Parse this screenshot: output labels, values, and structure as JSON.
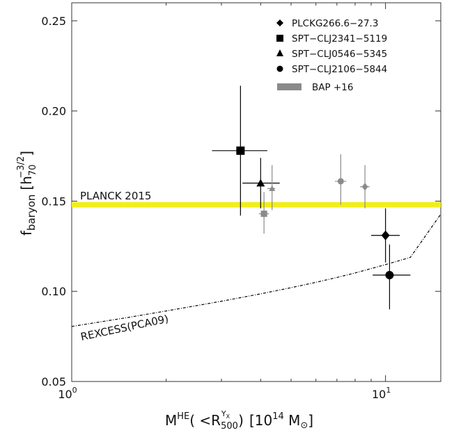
{
  "chart_data": {
    "type": "scatter",
    "x_scale": "log",
    "xlim": [
      1,
      15
    ],
    "ylim": [
      0.05,
      0.26
    ],
    "xlabel": {
      "main": "M",
      "sup": "HE",
      "paren_open": "( <R",
      "r_sup": "Y",
      "r_sup_sub": "X",
      "r_sub": "500",
      "paren_close": ")",
      "units_open": "[10",
      "units_sup": "14",
      "units_m": " M",
      "units_close": "]"
    },
    "ylabel": {
      "main": "f",
      "sub": "baryon",
      "bracket_open": "[h",
      "h_sub": "70",
      "h_sup": "−3/2",
      "bracket_close": "]"
    },
    "x_ticks": [
      {
        "value": 1,
        "base": "10",
        "exp": "0"
      },
      {
        "value": 10,
        "base": "10",
        "exp": "1"
      }
    ],
    "y_ticks": [
      {
        "value": 0.05,
        "label": "0.05"
      },
      {
        "value": 0.1,
        "label": "0.10"
      },
      {
        "value": 0.15,
        "label": "0.15"
      },
      {
        "value": 0.2,
        "label": "0.20"
      },
      {
        "value": 0.25,
        "label": "0.25"
      }
    ],
    "legend": {
      "placement": "top-right",
      "entries": [
        {
          "label": "PLCKG266.6−27.3",
          "marker": "diamond",
          "color": "#000000"
        },
        {
          "label": "SPT−CLJ2341−5119",
          "marker": "square",
          "color": "#000000"
        },
        {
          "label": "SPT−CLJ0546−5345",
          "marker": "triangle",
          "color": "#000000"
        },
        {
          "label": "SPT−CLJ2106−5844",
          "marker": "circle",
          "color": "#000000"
        },
        {
          "label": "BAP +16",
          "marker": "band",
          "color": "#8a8a8a"
        }
      ]
    },
    "planck": {
      "label": "PLANCK 2015",
      "y": 0.148,
      "y_band": [
        0.1465,
        0.1495
      ],
      "color": "#f2ee1a"
    },
    "rexcess": {
      "label": "REXCESS(PCA09)",
      "x": [
        1.0,
        1.5,
        2.0,
        3.0,
        4.0,
        5.0,
        6.0,
        7.0,
        8.0,
        9.0,
        10.0,
        12.0,
        15.0
      ],
      "y": [
        0.0805,
        0.0854,
        0.0891,
        0.0945,
        0.0986,
        0.102,
        0.105,
        0.1077,
        0.1102,
        0.1126,
        0.1148,
        0.1188,
        0.1428
      ]
    },
    "series": [
      {
        "name": "PLCKG266.6−27.3",
        "marker": "diamond",
        "color": "#000000",
        "points": [
          {
            "x": 10.0,
            "y": 0.131,
            "xerr": [
              9.0,
              11.1
            ],
            "yerr": [
              0.116,
              0.146
            ]
          }
        ]
      },
      {
        "name": "SPT−CLJ2341−5119",
        "marker": "square",
        "color": "#000000",
        "points": [
          {
            "x": 3.45,
            "y": 0.178,
            "xerr": [
              2.8,
              4.2
            ],
            "yerr": [
              0.142,
              0.214
            ]
          }
        ]
      },
      {
        "name": "SPT−CLJ0546−5345",
        "marker": "triangle",
        "color": "#000000",
        "points": [
          {
            "x": 4.0,
            "y": 0.16,
            "xerr": [
              3.5,
              4.6
            ],
            "yerr": [
              0.146,
              0.174
            ]
          }
        ]
      },
      {
        "name": "SPT−CLJ2106−5844",
        "marker": "circle",
        "color": "#000000",
        "points": [
          {
            "x": 10.3,
            "y": 0.109,
            "xerr": [
              9.1,
              12.0
            ],
            "yerr": [
              0.09,
              0.126
            ]
          }
        ]
      },
      {
        "name": "BAP +16",
        "marker": "mixed",
        "color": "#8a8a8a",
        "points": [
          {
            "x": 4.1,
            "y": 0.143,
            "xerr": [
              3.95,
              4.25
            ],
            "yerr": [
              0.132,
              0.155
            ],
            "marker": "square"
          },
          {
            "x": 4.35,
            "y": 0.157,
            "xerr": [
              4.2,
              4.45
            ],
            "yerr": [
              0.145,
              0.17
            ],
            "marker": "triangle"
          },
          {
            "x": 7.2,
            "y": 0.161,
            "xerr": [
              6.9,
              7.5
            ],
            "yerr": [
              0.148,
              0.176
            ],
            "marker": "circle"
          },
          {
            "x": 8.6,
            "y": 0.158,
            "xerr": [
              8.3,
              8.9
            ],
            "yerr": [
              0.146,
              0.17
            ],
            "marker": "diamond"
          }
        ]
      }
    ]
  }
}
